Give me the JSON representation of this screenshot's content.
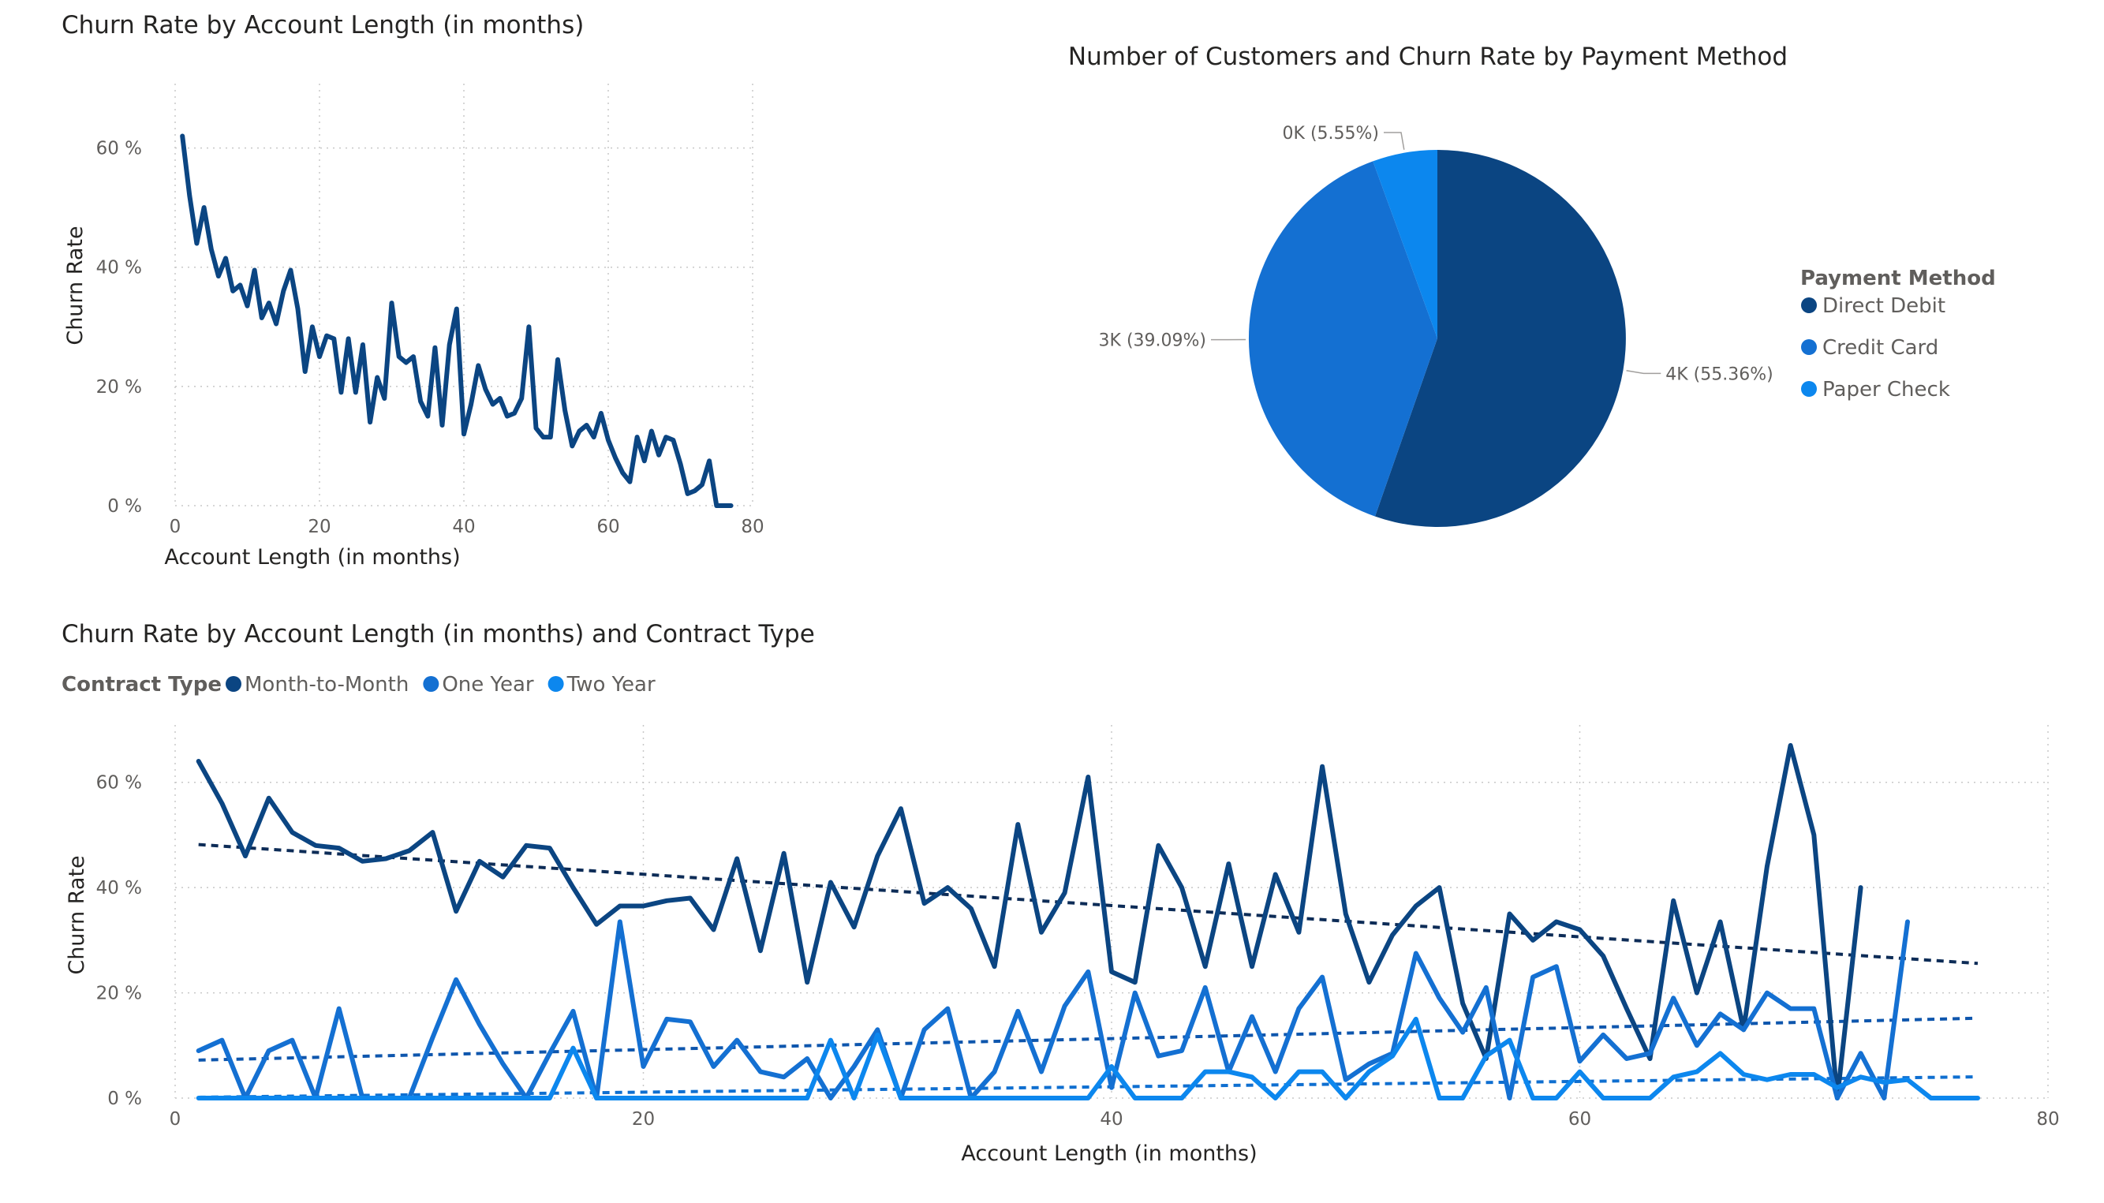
{
  "colors": {
    "month_to_month": "#0b4582",
    "one_year": "#1470d2",
    "two_year": "#0c87ee",
    "direct_debit": "#0b4582",
    "credit_card": "#1470d2",
    "paper_check": "#0c87ee",
    "trend_dark": "#0d2c57",
    "trend_mid": "#0e56ad",
    "trend_light": "#0f6fd0"
  },
  "chart_data": [
    {
      "id": "churn-by-length",
      "type": "line",
      "title": "Churn Rate by Account Length (in months)",
      "xlabel": "Account Length (in months)",
      "ylabel": "Churn Rate",
      "xlim": [
        0,
        80
      ],
      "ylim": [
        0,
        70
      ],
      "xticks": [
        0,
        20,
        40,
        60,
        80
      ],
      "yticks": [
        0,
        20,
        40,
        60
      ],
      "ytick_labels": [
        "0 %",
        "20 %",
        "40 %",
        "60 %"
      ],
      "grid": true,
      "series": [
        {
          "x": [
            1,
            2,
            3,
            4,
            5,
            6,
            7,
            8,
            9,
            10,
            11,
            12,
            13,
            14,
            15,
            16,
            17,
            18,
            19,
            20,
            21,
            22,
            23,
            24,
            25,
            26,
            27,
            28,
            29,
            30,
            31,
            32,
            33,
            34,
            35,
            36,
            37,
            38,
            39,
            40,
            41,
            42,
            43,
            44,
            45,
            46,
            47,
            48,
            49,
            50,
            51,
            52,
            53,
            54,
            55,
            56,
            57,
            58,
            59,
            60,
            61,
            62,
            63,
            64,
            65,
            66,
            67,
            68,
            69,
            70,
            71,
            72,
            73,
            74,
            75,
            76,
            77
          ],
          "values": [
            62,
            52,
            44,
            50,
            43,
            38.5,
            41.5,
            36,
            37,
            33.5,
            39.5,
            31.5,
            34,
            30.5,
            36,
            39.5,
            33,
            22.5,
            30,
            25,
            28.5,
            28,
            19,
            28,
            19,
            27,
            14,
            21.5,
            18,
            34,
            25,
            24,
            25,
            17.5,
            15,
            26.5,
            13.5,
            27,
            33,
            12,
            17,
            23.5,
            19.5,
            17,
            18,
            15,
            15.5,
            18,
            30,
            13,
            11.5,
            11.5,
            24.5,
            16,
            10,
            12.5,
            13.5,
            11.5,
            15.5,
            11,
            8,
            5.5,
            4,
            11.5,
            7.5,
            12.5,
            8.5,
            11.5,
            11,
            7,
            2,
            2.5,
            3.5,
            7.5,
            0,
            0,
            0
          ]
        }
      ]
    },
    {
      "id": "customers-by-payment",
      "type": "pie",
      "title": "Number of Customers and Churn Rate by Payment Method",
      "legend_title": "Payment Method",
      "legend_position": "right",
      "slices": [
        {
          "name": "Direct Debit",
          "value": 55.36,
          "label": "4K (55.36%)"
        },
        {
          "name": "Credit Card",
          "value": 39.09,
          "label": "3K (39.09%)"
        },
        {
          "name": "Paper Check",
          "value": 5.55,
          "label": "0K (5.55%)"
        }
      ]
    },
    {
      "id": "churn-by-length-contract",
      "type": "line",
      "title": "Churn Rate by Account Length (in months) and Contract Type",
      "xlabel": "Account Length (in months)",
      "ylabel": "Churn Rate",
      "legend_title": "Contract Type",
      "legend_position": "top-left",
      "xlim": [
        0,
        80
      ],
      "ylim": [
        0,
        70
      ],
      "xticks": [
        0,
        20,
        40,
        60,
        80
      ],
      "yticks": [
        0,
        20,
        40,
        60
      ],
      "ytick_labels": [
        "0 %",
        "20 %",
        "40 %",
        "60 %"
      ],
      "grid": true,
      "trendlines": true,
      "series": [
        {
          "name": "Month-to-Month",
          "x": [
            1,
            2,
            3,
            4,
            5,
            6,
            7,
            8,
            9,
            10,
            11,
            12,
            13,
            14,
            15,
            16,
            17,
            18,
            19,
            20,
            21,
            22,
            23,
            24,
            25,
            26,
            27,
            28,
            29,
            30,
            31,
            32,
            33,
            34,
            35,
            36,
            37,
            38,
            39,
            40,
            41,
            42,
            43,
            44,
            45,
            46,
            47,
            48,
            49,
            50,
            51,
            52,
            53,
            54,
            55,
            56,
            57,
            58,
            59,
            60,
            61,
            62,
            63,
            64,
            65,
            66,
            67,
            68,
            69,
            70,
            71,
            72
          ],
          "values": [
            64,
            56,
            46,
            57,
            50.5,
            48,
            47.5,
            45,
            45.5,
            47,
            50.5,
            35.5,
            45,
            42,
            48,
            47.5,
            40,
            33,
            36.5,
            36.5,
            37.5,
            38,
            32,
            45.5,
            28,
            46.5,
            22,
            41,
            32.5,
            46,
            55,
            37,
            40,
            36,
            25,
            52,
            31.5,
            39,
            61,
            24,
            22,
            48,
            40,
            25,
            44.5,
            25,
            42.5,
            31.5,
            63,
            35,
            22,
            31,
            36.5,
            40,
            18,
            7.5,
            35,
            30,
            33.5,
            32,
            27,
            17,
            7.5,
            37.5,
            20,
            33.5,
            13,
            44,
            67,
            50,
            0,
            40
          ]
        },
        {
          "name": "One Year",
          "x": [
            1,
            2,
            3,
            4,
            5,
            6,
            7,
            8,
            9,
            10,
            11,
            12,
            13,
            14,
            15,
            16,
            17,
            18,
            19,
            20,
            21,
            22,
            23,
            24,
            25,
            26,
            27,
            28,
            29,
            30,
            31,
            32,
            33,
            34,
            35,
            36,
            37,
            38,
            39,
            40,
            41,
            42,
            43,
            44,
            45,
            46,
            47,
            48,
            49,
            50,
            51,
            52,
            53,
            54,
            55,
            56,
            57,
            58,
            59,
            60,
            61,
            62,
            63,
            64,
            65,
            66,
            67,
            68,
            69,
            70,
            71,
            72,
            73,
            74
          ],
          "values": [
            9,
            11,
            0,
            9,
            11,
            0,
            17,
            0,
            0,
            0,
            11.5,
            22.5,
            14,
            6.5,
            0,
            8.5,
            16.5,
            0,
            33.5,
            6,
            15,
            14.5,
            6,
            11,
            5,
            4,
            7.5,
            0,
            6,
            13,
            0,
            13,
            17,
            0,
            5,
            16.5,
            5,
            17.5,
            24,
            2,
            20,
            8,
            9,
            21,
            5,
            15.5,
            5,
            17,
            23,
            3.5,
            6.5,
            8.5,
            27.5,
            19,
            12.5,
            21,
            0,
            23,
            25,
            7,
            12,
            7.5,
            8.5,
            19,
            10,
            16,
            13,
            20,
            17,
            17,
            0,
            8.5,
            0,
            33.5
          ]
        },
        {
          "name": "Two Year",
          "x": [
            1,
            2,
            3,
            4,
            5,
            6,
            7,
            8,
            9,
            10,
            11,
            12,
            13,
            14,
            15,
            16,
            17,
            18,
            19,
            20,
            21,
            22,
            23,
            24,
            25,
            26,
            27,
            28,
            29,
            30,
            31,
            32,
            33,
            34,
            35,
            36,
            37,
            38,
            39,
            40,
            41,
            42,
            43,
            44,
            45,
            46,
            47,
            48,
            49,
            50,
            51,
            52,
            53,
            54,
            55,
            56,
            57,
            58,
            59,
            60,
            61,
            62,
            63,
            64,
            65,
            66,
            67,
            68,
            69,
            70,
            71,
            72,
            73,
            74,
            75,
            76,
            77
          ],
          "values": [
            0,
            0,
            0,
            0,
            0,
            0,
            0,
            0,
            0,
            0,
            0,
            0,
            0,
            0,
            0,
            0,
            9.5,
            0,
            0,
            0,
            0,
            0,
            0,
            0,
            0,
            0,
            0,
            11,
            0,
            12,
            0,
            0,
            0,
            0,
            0,
            0,
            0,
            0,
            0,
            6,
            0,
            0,
            0,
            5,
            5,
            4,
            0,
            5,
            5,
            0,
            5,
            8,
            15,
            0,
            0,
            8,
            11,
            0,
            0,
            5,
            0,
            0,
            0,
            4,
            5,
            8.5,
            4.5,
            3.5,
            4.5,
            4.5,
            2,
            4,
            3,
            3.5,
            0,
            0,
            0
          ]
        }
      ]
    }
  ]
}
